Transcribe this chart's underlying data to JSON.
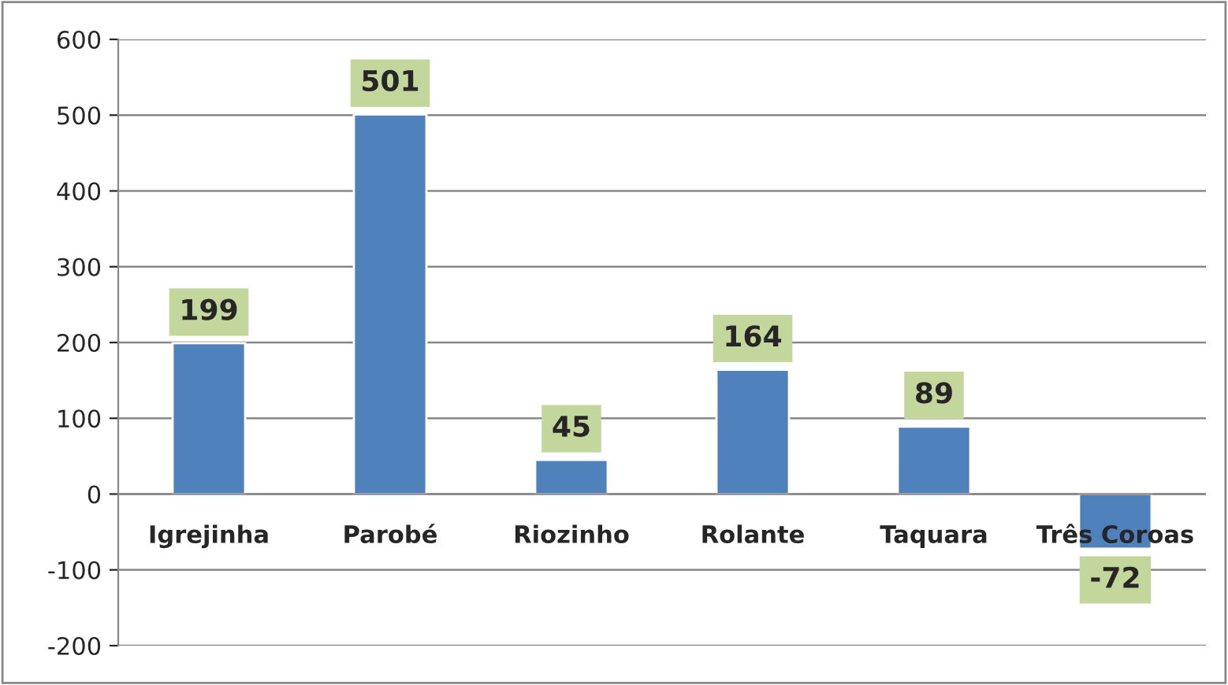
{
  "chart_data": {
    "type": "bar",
    "categories": [
      "Igrejinha",
      "Parobé",
      "Riozinho",
      "Rolante",
      "Taquara",
      "Três Coroas"
    ],
    "values": [
      199,
      501,
      45,
      164,
      89,
      -72
    ],
    "color": "#4f81bd",
    "ylim": [
      -200,
      600
    ],
    "yticks": [
      -200,
      -100,
      0,
      100,
      200,
      300,
      400,
      500,
      600
    ],
    "grid": "y",
    "data_labels": true
  }
}
